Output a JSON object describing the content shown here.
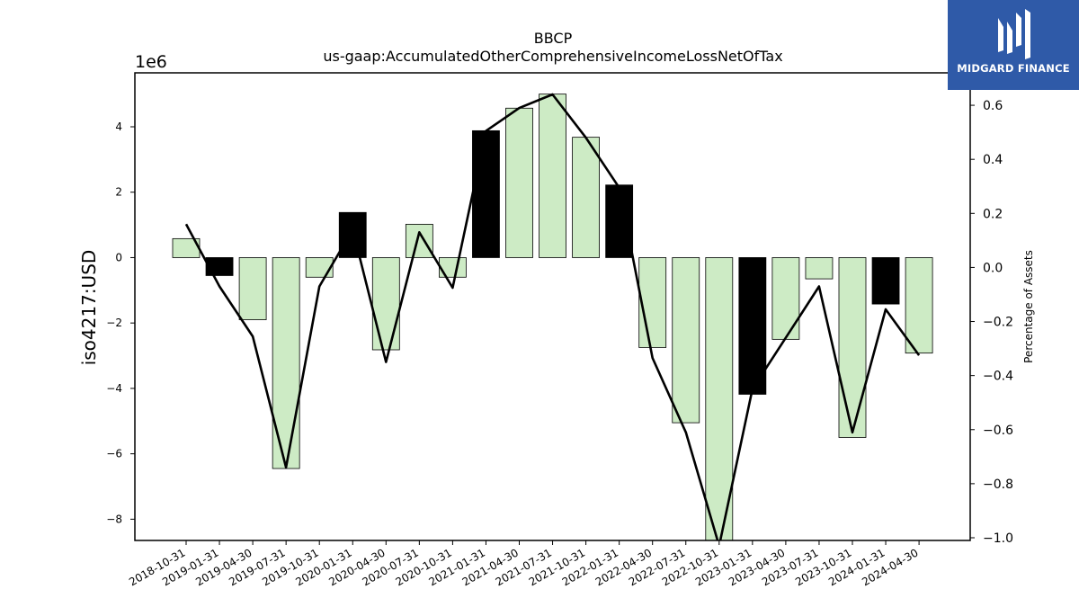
{
  "chart_data": {
    "type": "bar",
    "title": "BBCP",
    "subtitle": "us-gaap:AccumulatedOtherComprehensiveIncomeLossNetOfTax",
    "ylabel": "iso4217:USD",
    "y_offset_label": "1e6",
    "y2label": "Percentage of Assets",
    "categories": [
      "2018-10-31",
      "2019-01-31",
      "2019-04-30",
      "2019-07-31",
      "2019-10-31",
      "2020-01-31",
      "2020-04-30",
      "2020-07-31",
      "2020-10-31",
      "2021-01-31",
      "2021-04-30",
      "2021-07-31",
      "2021-10-31",
      "2022-01-31",
      "2022-04-30",
      "2022-07-31",
      "2022-10-31",
      "2023-01-31",
      "2023-04-30",
      "2023-07-31",
      "2023-10-31",
      "2024-01-31",
      "2024-04-30"
    ],
    "values": [
      0.58,
      -0.55,
      -1.9,
      -6.45,
      -0.6,
      1.38,
      -2.82,
      1.02,
      -0.6,
      3.88,
      4.57,
      5.0,
      3.68,
      2.22,
      -2.75,
      -5.05,
      -8.65,
      -4.18,
      -2.5,
      -0.65,
      -5.5,
      -1.42,
      -2.92
    ],
    "highlight": [
      false,
      true,
      false,
      false,
      false,
      true,
      false,
      false,
      false,
      true,
      false,
      false,
      false,
      true,
      false,
      false,
      false,
      true,
      false,
      false,
      false,
      true,
      false
    ],
    "percent_of_assets": [
      0.16,
      -0.07,
      -0.255,
      -0.74,
      -0.07,
      0.14,
      -0.35,
      0.13,
      -0.075,
      0.505,
      0.59,
      0.64,
      0.48,
      0.295,
      -0.335,
      -0.61,
      -1.03,
      -0.45,
      -0.26,
      -0.07,
      -0.61,
      -0.155,
      -0.325
    ],
    "ylim": [
      -8.65,
      5.65
    ],
    "y_ticks": [
      -8,
      -6,
      -4,
      -2,
      0,
      2,
      4
    ],
    "y2lim": [
      -1.01,
      0.72
    ],
    "y2_ticks": [
      -1.0,
      -0.8,
      -0.6,
      -0.4,
      -0.2,
      0.0,
      0.2,
      0.4,
      0.6
    ],
    "bar_color": "#cdebc5",
    "highlight_color": "#000000",
    "line_color": "#000000",
    "grid": false,
    "legend": "none"
  },
  "logo": {
    "text": "MIDGARD FINANCE",
    "color": "#2f5aa8"
  }
}
